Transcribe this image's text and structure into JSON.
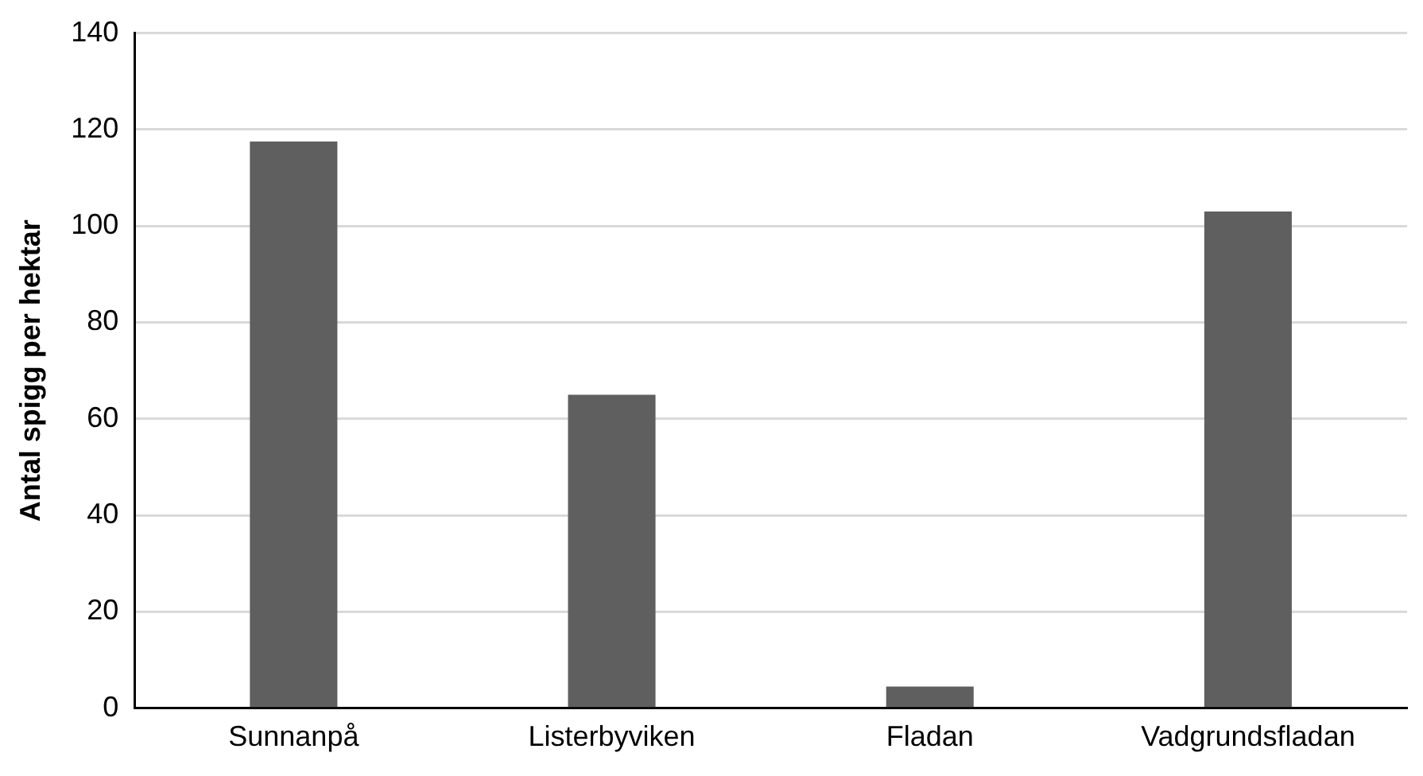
{
  "chart_data": {
    "type": "bar",
    "ylabel": "Antal spigg per hektar",
    "categories": [
      "Sunnanpå",
      "Listerbyviken",
      "Fladan",
      "Vadgrundsfladan"
    ],
    "values": [
      117.5,
      65,
      4.5,
      103
    ],
    "color": "#5f5f5f",
    "ylim": [
      0,
      140
    ],
    "yticks": [
      0,
      20,
      40,
      60,
      80,
      100,
      120,
      140
    ],
    "grid": "y",
    "legend": false
  }
}
